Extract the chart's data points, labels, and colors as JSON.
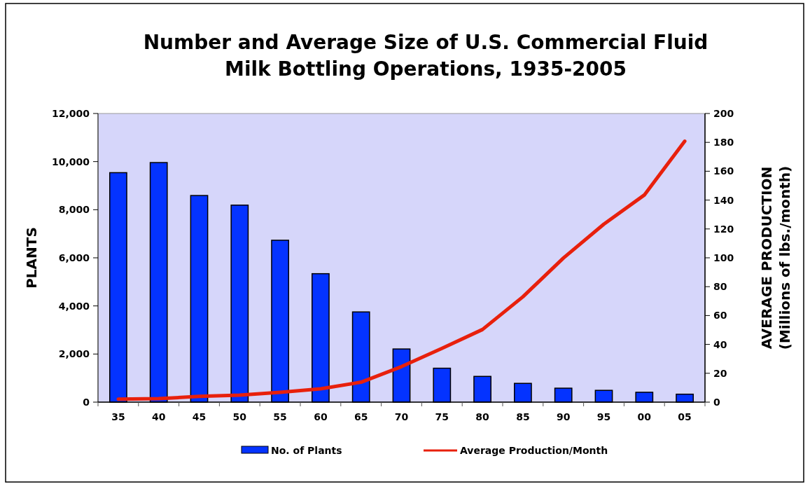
{
  "chart_data": {
    "type": "bar",
    "title": "Number and Average Size of U.S. Commercial Fluid Milk Bottling Operations, 1935-2005",
    "categories": [
      "35",
      "40",
      "45",
      "50",
      "55",
      "60",
      "65",
      "70",
      "75",
      "80",
      "85",
      "90",
      "95",
      "00",
      "05"
    ],
    "series": [
      {
        "name": "No. of Plants",
        "color": "#0433ff",
        "values": [
          9540,
          9960,
          8590,
          8190,
          6730,
          5340,
          3750,
          2210,
          1410,
          1070,
          780,
          580,
          490,
          410,
          330
        ]
      },
      {
        "name": "Average Production/Month",
        "type": "line",
        "axis": "y2",
        "color": "#e8200c",
        "values": [
          2.1,
          2.4,
          4.0,
          4.9,
          6.8,
          9.2,
          13.8,
          24.6,
          37.3,
          50.3,
          73,
          99.8,
          123.3,
          143.5,
          180.8
        ]
      }
    ],
    "ylabel": "PLANTS",
    "y2label": "AVERAGE PRODUCTION (Millions of lbs./month)",
    "ylim": [
      0,
      12000
    ],
    "yticks": [
      {
        "value": 0,
        "label": "0"
      },
      {
        "value": 2000,
        "label": "2,000"
      },
      {
        "value": 4000,
        "label": "4,000"
      },
      {
        "value": 6000,
        "label": "6,000"
      },
      {
        "value": 8000,
        "label": "8,000"
      },
      {
        "value": 10000,
        "label": "10,000"
      },
      {
        "value": 12000,
        "label": "12,000"
      }
    ],
    "y2lim": [
      0,
      200
    ],
    "y2ticks": [
      0,
      20,
      40,
      60,
      80,
      100,
      120,
      140,
      160,
      180,
      200
    ],
    "legend": "bottom",
    "grid": false
  }
}
